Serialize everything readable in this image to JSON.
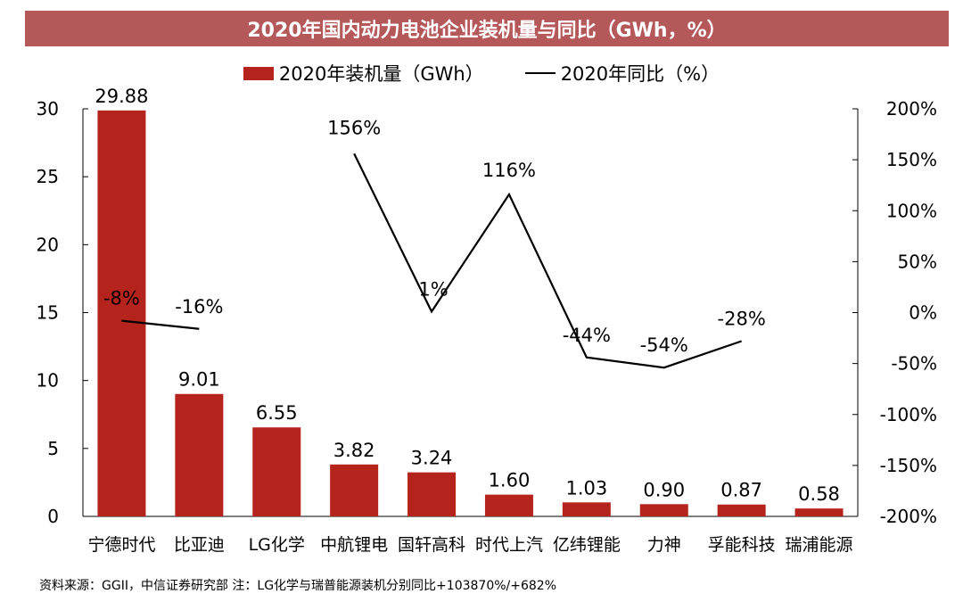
{
  "title": "2020年国内动力电池企业装机量与同比（GWh，%）",
  "source": "资料来源：GGII，中信证券研究部 注：LG化学与瑞普能源装机分别同比+103870%/+682%",
  "colors": {
    "bar": "#b5231d",
    "line": "#000000",
    "title_bg": "#b5585a"
  },
  "chart_data": {
    "type": "bar",
    "title": "2020年国内动力电池企业装机量与同比（GWh，%）",
    "categories": [
      "宁德时代",
      "比亚迪",
      "LG化学",
      "中航锂电",
      "国轩高科",
      "时代上汽",
      "亿纬锂能",
      "力神",
      "孚能科技",
      "瑞浦能源"
    ],
    "series": [
      {
        "name": "2020年装机量（GWh）",
        "type": "bar",
        "axis": "left",
        "values": [
          29.88,
          9.01,
          6.55,
          3.82,
          3.24,
          1.6,
          1.03,
          0.9,
          0.87,
          0.58
        ],
        "labels": [
          "29.88",
          "9.01",
          "6.55",
          "3.82",
          "3.24",
          "1.60",
          "1.03",
          "0.90",
          "0.87",
          "0.58"
        ]
      },
      {
        "name": "2020年同比（%）",
        "type": "line",
        "axis": "right",
        "segments": [
          {
            "categories": [
              "宁德时代",
              "比亚迪"
            ],
            "values": [
              -8,
              -16
            ],
            "labels": [
              "-8%",
              "-16%"
            ]
          },
          {
            "categories": [
              "中航锂电",
              "国轩高科",
              "时代上汽",
              "亿纬锂能",
              "力神",
              "孚能科技"
            ],
            "values": [
              156,
              1,
              116,
              -44,
              -54,
              -28
            ],
            "labels": [
              "156%",
              "1%",
              "116%",
              "-44%",
              "-54%",
              "-28%"
            ]
          }
        ]
      }
    ],
    "y_left": {
      "ylim": [
        0,
        30
      ],
      "ticks": [
        "0",
        "5",
        "10",
        "15",
        "20",
        "25",
        "30"
      ]
    },
    "y_right": {
      "ylim": [
        -200,
        200
      ],
      "ticks": [
        "-200%",
        "-150%",
        "-100%",
        "-50%",
        "0%",
        "50%",
        "100%",
        "150%",
        "200%"
      ]
    },
    "grid": false,
    "legend": "top-center"
  }
}
